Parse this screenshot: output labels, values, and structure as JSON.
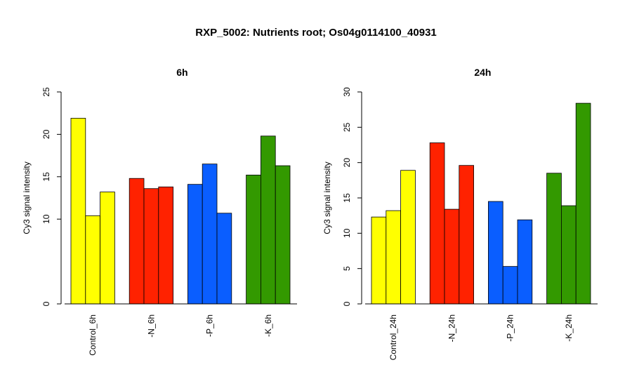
{
  "title": "RXP_5002: Nutrients root; Os04g0114100_40931",
  "chart_data": [
    {
      "type": "bar",
      "title": "6h",
      "ylabel": "Cy3 signal intensity",
      "ylim": [
        0,
        25
      ],
      "yticks": [
        "0",
        "10",
        "15",
        "20",
        "25"
      ],
      "categories": [
        "Control_6h",
        "-N_6h",
        "-P_6h",
        "-K_6h"
      ],
      "group_colors": [
        "#ffff00",
        "#ff2200",
        "#0a5eff",
        "#339900"
      ],
      "values": [
        [
          21.9,
          10.4,
          13.2
        ],
        [
          14.8,
          13.6,
          13.8
        ],
        [
          14.1,
          16.5,
          10.7
        ],
        [
          15.2,
          19.8,
          16.3
        ]
      ]
    },
    {
      "type": "bar",
      "title": "24h",
      "ylabel": "Cy3 signal intensity",
      "ylim": [
        0,
        30
      ],
      "yticks": [
        "0",
        "5",
        "10",
        "15",
        "20",
        "25",
        "30"
      ],
      "categories": [
        "Control_24h",
        "-N_24h",
        "-P_24h",
        "-K_24h"
      ],
      "group_colors": [
        "#ffff00",
        "#ff2200",
        "#0a5eff",
        "#339900"
      ],
      "values": [
        [
          12.3,
          13.2,
          18.9
        ],
        [
          22.8,
          13.4,
          19.6
        ],
        [
          14.5,
          5.3,
          11.9
        ],
        [
          18.5,
          13.9,
          28.4
        ]
      ]
    }
  ]
}
